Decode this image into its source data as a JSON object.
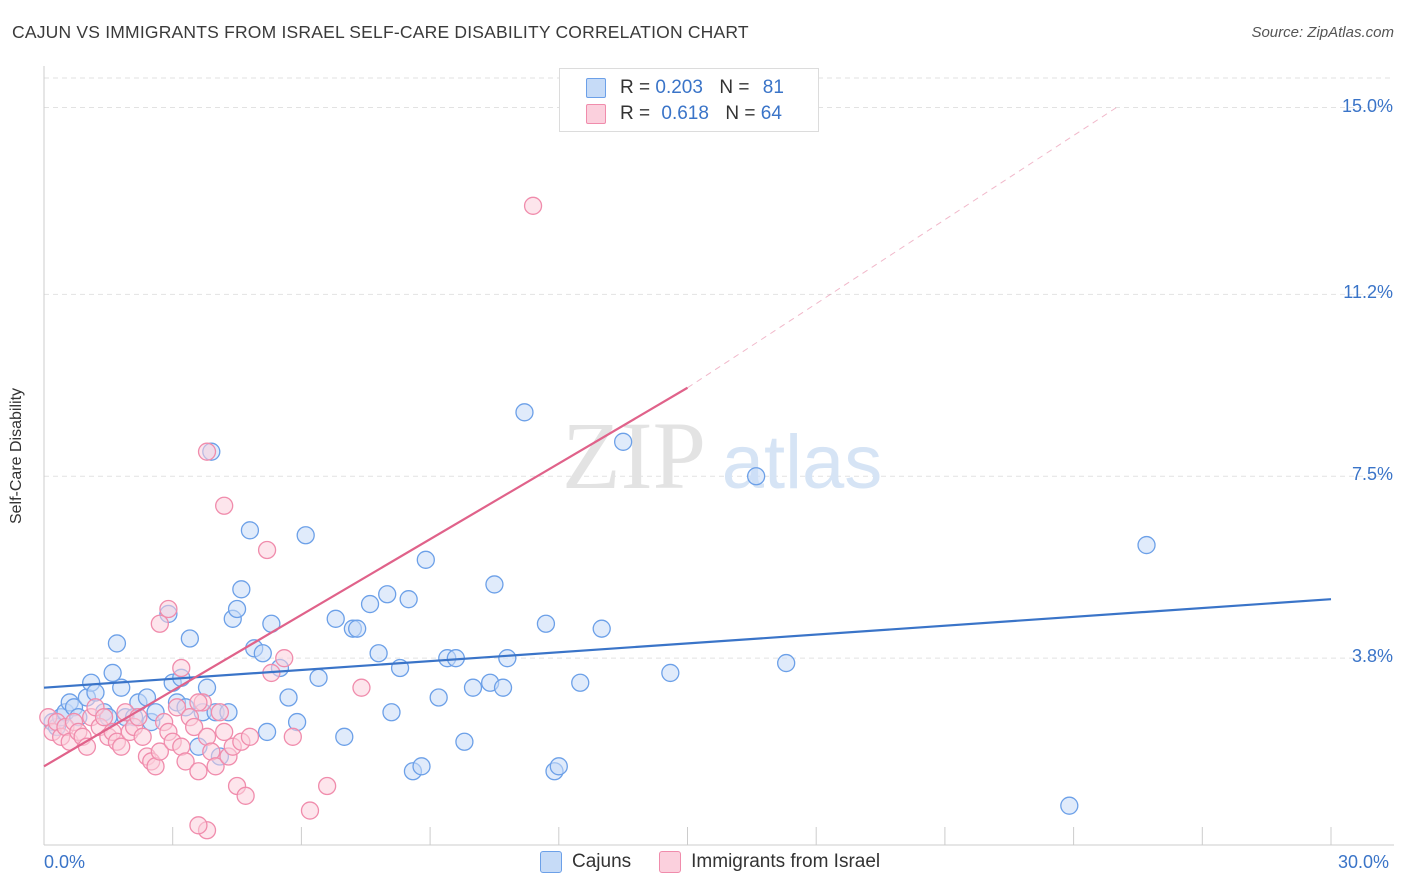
{
  "title": "CAJUN VS IMMIGRANTS FROM ISRAEL SELF-CARE DISABILITY CORRELATION CHART",
  "source": "Source: ZipAtlas.com",
  "watermark": {
    "zip": "ZIP",
    "atlas": "atlas"
  },
  "legend": {
    "rows": [
      {
        "r_label": "R =",
        "r_value": "0.203",
        "n_label": "N =",
        "n_value": "81",
        "color": "#6ca0e8",
        "fill": "#c6dbf7"
      },
      {
        "r_label": "R =",
        "r_value": "0.618",
        "n_label": "N =",
        "n_value": "64",
        "color": "#f08cac",
        "fill": "#fbd0dd"
      }
    ]
  },
  "bottom_legend": [
    {
      "label": "Cajuns",
      "color": "#6ca0e8",
      "fill": "#c6dbf7"
    },
    {
      "label": "Immigrants from Israel",
      "color": "#f08cac",
      "fill": "#fbd0dd"
    }
  ],
  "chart_data": {
    "type": "scatter",
    "title": "CAJUN VS IMMIGRANTS FROM ISRAEL SELF-CARE DISABILITY CORRELATION CHART",
    "xlabel": "",
    "ylabel": "Self-Care Disability",
    "xlim": [
      0,
      30
    ],
    "ylim": [
      0,
      15.6
    ],
    "x_tick_labels": [
      "0.0%",
      "30.0%"
    ],
    "y_ticks": [
      3.8,
      7.5,
      11.2,
      15.0
    ],
    "y_tick_labels": [
      "3.8%",
      "7.5%",
      "11.2%",
      "15.0%"
    ],
    "grid": true,
    "legend_position": "top-center",
    "series": [
      {
        "name": "Cajuns",
        "color": "#3a74c8",
        "marker_stroke": "#6ca0e8",
        "marker_fill": "#c6dbf7",
        "trend": {
          "x": [
            0,
            30
          ],
          "y": [
            3.2,
            5.0
          ],
          "style": "solid"
        },
        "points": [
          [
            0.2,
            2.5
          ],
          [
            0.3,
            2.4
          ],
          [
            0.4,
            2.6
          ],
          [
            0.5,
            2.7
          ],
          [
            0.6,
            2.9
          ],
          [
            0.7,
            2.8
          ],
          [
            0.8,
            2.6
          ],
          [
            1.0,
            3.0
          ],
          [
            1.1,
            3.3
          ],
          [
            1.2,
            3.1
          ],
          [
            1.4,
            2.7
          ],
          [
            1.5,
            2.6
          ],
          [
            1.6,
            3.5
          ],
          [
            1.7,
            4.1
          ],
          [
            1.8,
            3.2
          ],
          [
            1.9,
            2.6
          ],
          [
            2.1,
            2.6
          ],
          [
            2.2,
            2.9
          ],
          [
            2.4,
            3.0
          ],
          [
            2.5,
            2.5
          ],
          [
            2.6,
            2.7
          ],
          [
            2.9,
            4.7
          ],
          [
            3.0,
            3.3
          ],
          [
            3.1,
            2.9
          ],
          [
            3.2,
            3.4
          ],
          [
            3.3,
            2.8
          ],
          [
            3.4,
            4.2
          ],
          [
            3.6,
            2.0
          ],
          [
            3.7,
            2.7
          ],
          [
            3.8,
            3.2
          ],
          [
            3.9,
            8.0
          ],
          [
            4.0,
            2.7
          ],
          [
            4.1,
            1.8
          ],
          [
            4.3,
            2.7
          ],
          [
            4.4,
            4.6
          ],
          [
            4.5,
            4.8
          ],
          [
            4.6,
            5.2
          ],
          [
            4.8,
            6.4
          ],
          [
            4.9,
            4.0
          ],
          [
            5.1,
            3.9
          ],
          [
            5.2,
            2.3
          ],
          [
            5.3,
            4.5
          ],
          [
            5.5,
            3.6
          ],
          [
            5.7,
            3.0
          ],
          [
            5.9,
            2.5
          ],
          [
            6.1,
            6.3
          ],
          [
            6.4,
            3.4
          ],
          [
            6.8,
            4.6
          ],
          [
            7.0,
            2.2
          ],
          [
            7.2,
            4.4
          ],
          [
            7.3,
            4.4
          ],
          [
            7.6,
            4.9
          ],
          [
            7.8,
            3.9
          ],
          [
            8.0,
            5.1
          ],
          [
            8.1,
            2.7
          ],
          [
            8.3,
            3.6
          ],
          [
            8.5,
            5.0
          ],
          [
            8.6,
            1.5
          ],
          [
            8.8,
            1.6
          ],
          [
            8.9,
            5.8
          ],
          [
            9.2,
            3.0
          ],
          [
            9.4,
            3.8
          ],
          [
            9.6,
            3.8
          ],
          [
            9.8,
            2.1
          ],
          [
            10.0,
            3.2
          ],
          [
            10.4,
            3.3
          ],
          [
            10.5,
            5.3
          ],
          [
            10.7,
            3.2
          ],
          [
            10.8,
            3.8
          ],
          [
            11.2,
            8.8
          ],
          [
            11.7,
            4.5
          ],
          [
            11.9,
            1.5
          ],
          [
            12.0,
            1.6
          ],
          [
            12.5,
            3.3
          ],
          [
            13.0,
            4.4
          ],
          [
            13.5,
            8.2
          ],
          [
            14.6,
            3.5
          ],
          [
            16.6,
            7.5
          ],
          [
            17.3,
            3.7
          ],
          [
            23.9,
            0.8
          ],
          [
            25.7,
            6.1
          ]
        ]
      },
      {
        "name": "Immigrants from Israel",
        "color": "#e0628a",
        "marker_stroke": "#f08cac",
        "marker_fill": "#fbd0dd",
        "trend": {
          "x": [
            0,
            15
          ],
          "y": [
            1.6,
            9.3
          ],
          "style": "solid",
          "dashed_extension": {
            "x": [
              15,
              25
            ],
            "y": [
              9.3,
              15.0
            ]
          }
        },
        "points": [
          [
            0.1,
            2.6
          ],
          [
            0.2,
            2.3
          ],
          [
            0.3,
            2.5
          ],
          [
            0.4,
            2.2
          ],
          [
            0.5,
            2.4
          ],
          [
            0.6,
            2.1
          ],
          [
            0.7,
            2.5
          ],
          [
            0.8,
            2.3
          ],
          [
            0.9,
            2.2
          ],
          [
            1.0,
            2.0
          ],
          [
            1.1,
            2.6
          ],
          [
            1.2,
            2.8
          ],
          [
            1.3,
            2.4
          ],
          [
            1.4,
            2.6
          ],
          [
            1.5,
            2.2
          ],
          [
            1.6,
            2.3
          ],
          [
            1.7,
            2.1
          ],
          [
            1.8,
            2.0
          ],
          [
            1.9,
            2.7
          ],
          [
            2.0,
            2.3
          ],
          [
            2.1,
            2.4
          ],
          [
            2.2,
            2.6
          ],
          [
            2.3,
            2.2
          ],
          [
            2.4,
            1.8
          ],
          [
            2.5,
            1.7
          ],
          [
            2.6,
            1.6
          ],
          [
            2.7,
            1.9
          ],
          [
            2.8,
            2.5
          ],
          [
            2.9,
            2.3
          ],
          [
            3.0,
            2.1
          ],
          [
            3.1,
            2.8
          ],
          [
            3.2,
            2.0
          ],
          [
            3.3,
            1.7
          ],
          [
            3.4,
            2.6
          ],
          [
            3.5,
            2.4
          ],
          [
            3.6,
            1.5
          ],
          [
            3.7,
            2.9
          ],
          [
            3.8,
            2.2
          ],
          [
            3.9,
            1.9
          ],
          [
            4.0,
            1.6
          ],
          [
            4.1,
            2.7
          ],
          [
            4.2,
            2.3
          ],
          [
            4.3,
            1.8
          ],
          [
            4.4,
            2.0
          ],
          [
            4.5,
            1.2
          ],
          [
            4.6,
            2.1
          ],
          [
            4.7,
            1.0
          ],
          [
            4.8,
            2.2
          ],
          [
            3.8,
            0.3
          ],
          [
            3.6,
            0.4
          ],
          [
            2.7,
            4.5
          ],
          [
            2.9,
            4.8
          ],
          [
            3.2,
            3.6
          ],
          [
            3.6,
            2.9
          ],
          [
            3.8,
            8.0
          ],
          [
            4.2,
            6.9
          ],
          [
            5.2,
            6.0
          ],
          [
            5.3,
            3.5
          ],
          [
            5.6,
            3.8
          ],
          [
            5.8,
            2.2
          ],
          [
            6.2,
            0.7
          ],
          [
            6.6,
            1.2
          ],
          [
            7.4,
            3.2
          ],
          [
            11.4,
            13.0
          ]
        ]
      }
    ]
  }
}
